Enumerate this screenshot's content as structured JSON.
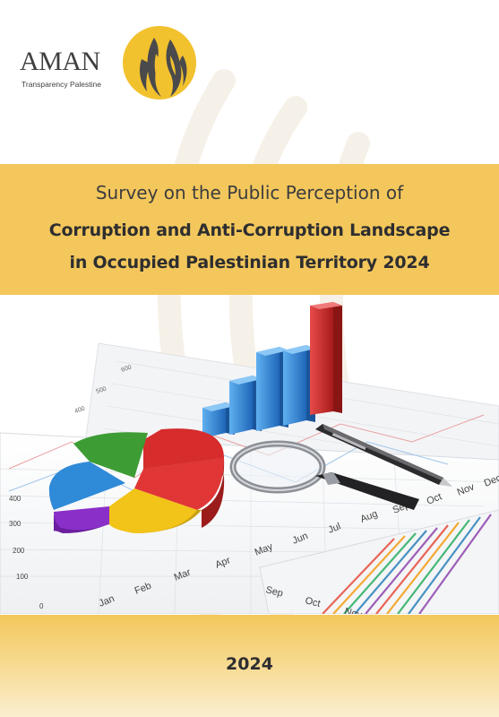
{
  "logo": {
    "name": "AMAN",
    "tagline": "Transparency Palestine",
    "colors": {
      "circle": "#f2c12e",
      "text": "#3f3f41"
    }
  },
  "title": {
    "line1": "Survey on the Public Perception of",
    "line2": "Corruption and Anti-Corruption Landscape",
    "line3": "in Occupied Palestinian Territory 2024"
  },
  "illustration": {
    "months": [
      "Jan",
      "Feb",
      "Mar",
      "Apr",
      "May",
      "Jun",
      "Jul",
      "Aug",
      "Sep",
      "Oct",
      "Nov",
      "Dec"
    ],
    "y_ticks": [
      "0",
      "100",
      "200",
      "300",
      "400"
    ],
    "back_ticks": [
      "600",
      "500",
      "400"
    ],
    "lower_months": [
      "Sep",
      "Oct",
      "Nov"
    ],
    "pie_colors": [
      "#d62c2c",
      "#f2c318",
      "#8b2fc9",
      "#2f8ad8",
      "#3e9c35"
    ],
    "bar_colors": [
      "#2f86d6",
      "#d62c2c"
    ]
  },
  "footer": {
    "year": "2024"
  },
  "colors": {
    "band": "#f3c75c",
    "text": "#2e2e30"
  }
}
